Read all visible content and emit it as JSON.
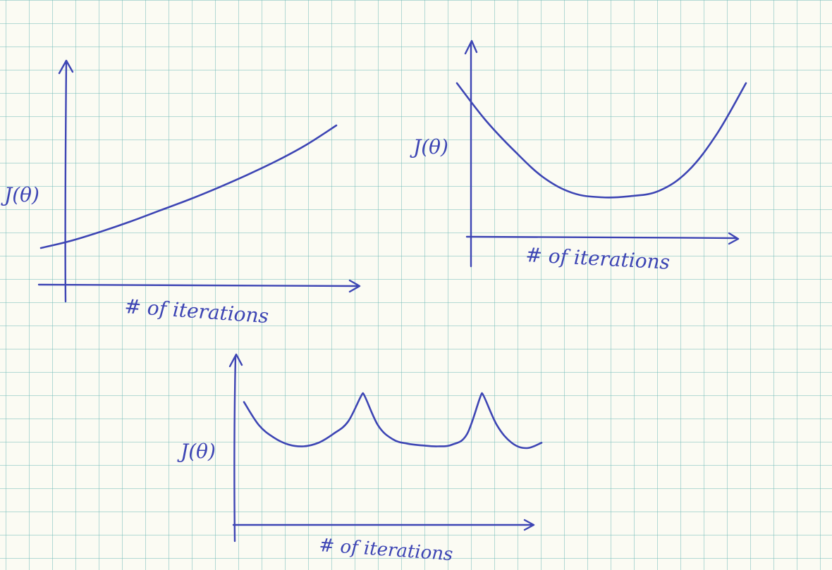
{
  "chart_data": [
    {
      "type": "line",
      "xlabel": "# of iterations",
      "ylabel": "J(θ)",
      "axis_ticks": false,
      "grid": false,
      "x": [
        0,
        1,
        2,
        3,
        4,
        5,
        6,
        7,
        8,
        9,
        10
      ],
      "series": [
        {
          "values": [
            1.2,
            1.55,
            2.0,
            2.5,
            3.05,
            3.6,
            4.2,
            4.85,
            5.55,
            6.35,
            7.3
          ]
        }
      ]
    },
    {
      "type": "line",
      "xlabel": "# of iterations",
      "ylabel": "J(θ)",
      "axis_ticks": false,
      "grid": false,
      "x": [
        0,
        1,
        2,
        3,
        4,
        5,
        6,
        7,
        8,
        9,
        10
      ],
      "series": [
        {
          "values": [
            7.6,
            5.9,
            4.5,
            3.3,
            2.6,
            2.4,
            2.45,
            2.7,
            3.6,
            5.3,
            7.6
          ]
        }
      ]
    },
    {
      "type": "line",
      "xlabel": "# of iterations",
      "ylabel": "J(θ)",
      "axis_ticks": false,
      "grid": false,
      "x": [
        0,
        0.5,
        1,
        1.5,
        2,
        2.5,
        3,
        3.5,
        4,
        4.5,
        5,
        5.5,
        6,
        6.5,
        7,
        7.5,
        8,
        8.5,
        9,
        9.5,
        10
      ],
      "series": [
        {
          "values": [
            6.3,
            5.0,
            4.3,
            3.9,
            3.8,
            4.0,
            4.5,
            5.2,
            6.8,
            5.0,
            4.2,
            3.95,
            3.85,
            3.8,
            3.9,
            4.5,
            6.8,
            5.0,
            4.0,
            3.7,
            4.0
          ]
        }
      ]
    }
  ]
}
